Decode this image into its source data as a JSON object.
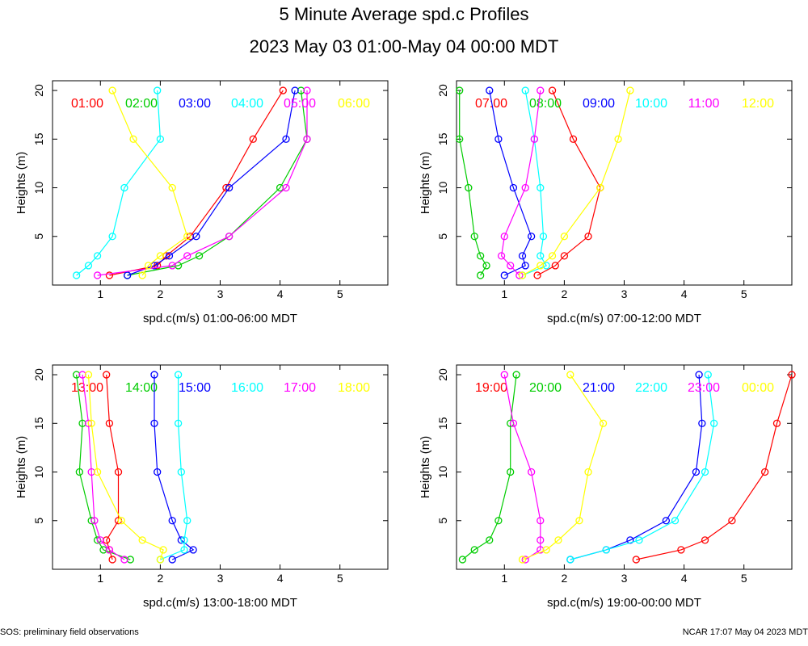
{
  "title": "5 Minute Average spd.c Profiles",
  "subtitle": "2023 May 03 01:00-May 04 00:00 MDT",
  "footer_left": "SOS: preliminary field observations",
  "footer_right": "NCAR 17:07 May 04 2023 MDT",
  "ylabel": "Heights (m)",
  "colors": [
    "#ff0000",
    "#00cc00",
    "#0000ff",
    "#00ffff",
    "#ff00ff",
    "#ffff00"
  ],
  "chart_data": [
    {
      "type": "line",
      "xlabel": "spd.c(m/s) 01:00-06:00 MDT",
      "xlim": [
        0.2,
        5.8
      ],
      "ylim": [
        0,
        21
      ],
      "xticks": [
        1,
        2,
        3,
        4,
        5
      ],
      "yticks": [
        5,
        10,
        15,
        20
      ],
      "heights": [
        1,
        2,
        3,
        5,
        10,
        15,
        20
      ],
      "series": [
        {
          "name": "01:00",
          "values": [
            1.15,
            1.95,
            2.1,
            2.5,
            3.1,
            3.55,
            4.05
          ]
        },
        {
          "name": "02:00",
          "values": [
            1.45,
            2.3,
            2.65,
            3.15,
            4.0,
            4.45,
            4.35
          ]
        },
        {
          "name": "03:00",
          "values": [
            1.45,
            1.9,
            2.15,
            2.6,
            3.15,
            4.1,
            4.25
          ]
        },
        {
          "name": "04:00",
          "values": [
            0.6,
            0.8,
            0.95,
            1.2,
            1.4,
            2.0,
            1.95
          ]
        },
        {
          "name": "05:00",
          "values": [
            0.95,
            2.2,
            2.45,
            3.15,
            4.1,
            4.45,
            4.45
          ]
        },
        {
          "name": "06:00",
          "values": [
            1.7,
            1.8,
            2.0,
            2.45,
            2.2,
            1.55,
            1.2
          ]
        }
      ]
    },
    {
      "type": "line",
      "xlabel": "spd.c(m/s) 07:00-12:00 MDT",
      "xlim": [
        0.2,
        5.8
      ],
      "ylim": [
        0,
        21
      ],
      "xticks": [
        1,
        2,
        3,
        4,
        5
      ],
      "yticks": [
        5,
        10,
        15,
        20
      ],
      "heights": [
        1,
        2,
        3,
        5,
        10,
        15,
        20
      ],
      "series": [
        {
          "name": "07:00",
          "values": [
            1.55,
            1.85,
            2.0,
            2.4,
            2.6,
            2.15,
            1.8
          ]
        },
        {
          "name": "08:00",
          "values": [
            0.6,
            0.7,
            0.6,
            0.5,
            0.4,
            0.25,
            0.25
          ]
        },
        {
          "name": "09:00",
          "values": [
            1.0,
            1.35,
            1.3,
            1.45,
            1.15,
            0.9,
            0.75
          ]
        },
        {
          "name": "10:00",
          "values": [
            1.3,
            1.7,
            1.6,
            1.65,
            1.6,
            1.5,
            1.35
          ]
        },
        {
          "name": "11:00",
          "values": [
            1.25,
            1.1,
            0.95,
            1.0,
            1.35,
            1.5,
            1.6
          ]
        },
        {
          "name": "12:00",
          "values": [
            1.3,
            1.6,
            1.8,
            2.0,
            2.6,
            2.9,
            3.1
          ]
        }
      ]
    },
    {
      "type": "line",
      "xlabel": "spd.c(m/s) 13:00-18:00 MDT",
      "xlim": [
        0.2,
        5.8
      ],
      "ylim": [
        0,
        21
      ],
      "xticks": [
        1,
        2,
        3,
        4,
        5
      ],
      "yticks": [
        5,
        10,
        15,
        20
      ],
      "heights": [
        1,
        2,
        3,
        5,
        10,
        15,
        20
      ],
      "series": [
        {
          "name": "13:00",
          "values": [
            1.2,
            1.15,
            1.1,
            1.3,
            1.3,
            1.15,
            1.1
          ]
        },
        {
          "name": "14:00",
          "values": [
            1.5,
            1.05,
            0.95,
            0.85,
            0.65,
            0.7,
            0.6
          ]
        },
        {
          "name": "15:00",
          "values": [
            2.2,
            2.55,
            2.35,
            2.2,
            1.95,
            1.9,
            1.9
          ]
        },
        {
          "name": "16:00",
          "values": [
            2.0,
            2.4,
            2.4,
            2.45,
            2.35,
            2.3,
            2.3
          ]
        },
        {
          "name": "17:00",
          "values": [
            1.4,
            1.15,
            1.0,
            0.9,
            0.85,
            0.8,
            0.7
          ]
        },
        {
          "name": "18:00",
          "values": [
            2.0,
            2.05,
            1.7,
            1.35,
            0.95,
            0.85,
            0.8
          ]
        }
      ]
    },
    {
      "type": "line",
      "xlabel": "spd.c(m/s) 19:00-00:00 MDT",
      "xlim": [
        0.2,
        5.8
      ],
      "ylim": [
        0,
        21
      ],
      "xticks": [
        1,
        2,
        3,
        4,
        5
      ],
      "yticks": [
        5,
        10,
        15,
        20
      ],
      "heights": [
        1,
        2,
        3,
        5,
        10,
        15,
        20
      ],
      "series": [
        {
          "name": "19:00",
          "values": [
            3.2,
            3.95,
            4.35,
            4.8,
            5.35,
            5.55,
            5.8
          ]
        },
        {
          "name": "20:00",
          "values": [
            0.3,
            0.5,
            0.75,
            0.9,
            1.1,
            1.1,
            1.2
          ]
        },
        {
          "name": "21:00",
          "values": [
            2.1,
            2.7,
            3.1,
            3.7,
            4.2,
            4.3,
            4.25
          ]
        },
        {
          "name": "22:00",
          "values": [
            2.1,
            2.7,
            3.25,
            3.85,
            4.35,
            4.5,
            4.4
          ]
        },
        {
          "name": "23:00",
          "values": [
            1.35,
            1.6,
            1.6,
            1.6,
            1.45,
            1.15,
            1.0
          ]
        },
        {
          "name": "00:00",
          "values": [
            1.3,
            1.7,
            1.9,
            2.25,
            2.4,
            2.65,
            2.1
          ]
        }
      ]
    }
  ]
}
